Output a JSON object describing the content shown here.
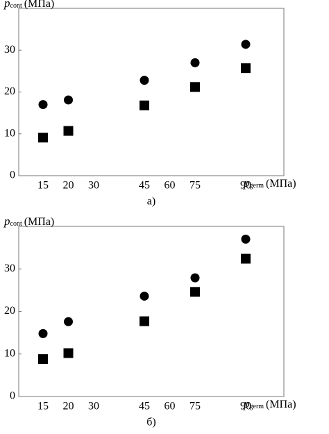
{
  "chart_data": [
    {
      "type": "scatter",
      "caption": "а)",
      "ylabel": {
        "symbol": "p",
        "subscript": "cont",
        "unit": "(МПа)"
      },
      "xlabel": {
        "symbol": "p",
        "subscript": "germ",
        "unit": "(МПа)"
      },
      "categories": [
        "15",
        "20",
        "30",
        null,
        "45",
        "60",
        "75",
        null,
        "90"
      ],
      "series": [
        {
          "marker": "circle",
          "color": "#000000",
          "values": [
            17,
            18.1,
            null,
            null,
            22.8,
            null,
            27,
            null,
            31.4
          ]
        },
        {
          "marker": "square",
          "color": "#000000",
          "values": [
            9.1,
            10.7,
            null,
            null,
            16.8,
            null,
            21.2,
            null,
            25.7
          ]
        }
      ],
      "ylim": [
        0,
        40
      ],
      "yticks": [
        0,
        10,
        20,
        30
      ]
    },
    {
      "type": "scatter",
      "caption": "б)",
      "ylabel": {
        "symbol": "p",
        "subscript": "cont",
        "unit": "(МПа)"
      },
      "xlabel": {
        "symbol": "p",
        "subscript": "germ",
        "unit": "(МПа)"
      },
      "categories": [
        "15",
        "20",
        "30",
        null,
        "45",
        "60",
        "75",
        null,
        "90"
      ],
      "series": [
        {
          "marker": "circle",
          "color": "#000000",
          "values": [
            14.8,
            17.6,
            null,
            null,
            23.6,
            null,
            27.9,
            null,
            37
          ]
        },
        {
          "marker": "square",
          "color": "#000000",
          "values": [
            8.8,
            10.2,
            null,
            null,
            17.7,
            null,
            24.6,
            null,
            32.4
          ]
        }
      ],
      "ylim": [
        0,
        40
      ],
      "yticks": [
        0,
        10,
        20,
        30
      ]
    }
  ]
}
